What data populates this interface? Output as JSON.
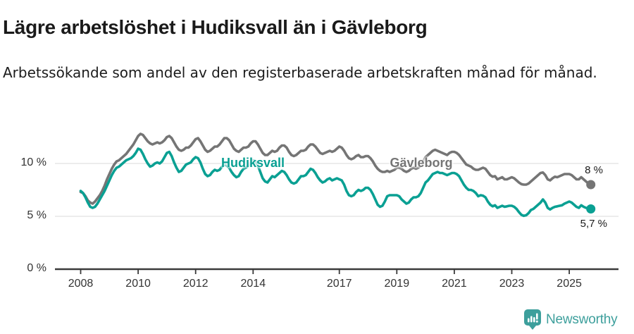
{
  "header": {
    "title": "Lägre arbetslöshet i Hudiksvall än i Gävleborg",
    "subtitle": "Arbetssökande som andel av den registerbaserade arbetskraften månad för månad."
  },
  "chart_data": {
    "type": "line",
    "title": "Lägre arbetslöshet i Hudiksvall än i Gävleborg",
    "frequency": "monthly",
    "x_start_year": 2008,
    "x_end": "2025-10",
    "ylim": [
      0,
      13.5
    ],
    "xlim": [
      2008,
      2025.9
    ],
    "grid": "horizontal",
    "y_ticks": [
      {
        "value": 0,
        "label": "0 %"
      },
      {
        "value": 5,
        "label": "5 %"
      },
      {
        "value": 10,
        "label": "10 %"
      }
    ],
    "x_ticks": [
      {
        "year": 2008,
        "label": "2008"
      },
      {
        "year": 2010,
        "label": "2010"
      },
      {
        "year": 2012,
        "label": "2012"
      },
      {
        "year": 2014,
        "label": "2014"
      },
      {
        "year": 2017,
        "label": "2017"
      },
      {
        "year": 2019,
        "label": "2019"
      },
      {
        "year": 2021,
        "label": "2021"
      },
      {
        "year": 2023,
        "label": "2023"
      },
      {
        "year": 2025,
        "label": "2025"
      }
    ],
    "series": [
      {
        "name": "Hudiksvall",
        "color": "#0aa093",
        "end_label": "5,7 %",
        "end_value": 5.7,
        "values": [
          7.4,
          7.2,
          6.8,
          6.3,
          5.9,
          5.8,
          5.9,
          6.2,
          6.6,
          7.0,
          7.4,
          7.9,
          8.4,
          8.9,
          9.3,
          9.6,
          9.7,
          9.9,
          10.1,
          10.3,
          10.4,
          10.5,
          10.7,
          11.0,
          11.4,
          11.3,
          10.9,
          10.4,
          10.0,
          9.7,
          9.8,
          10.0,
          10.1,
          10.0,
          10.2,
          10.6,
          11.0,
          11.1,
          10.7,
          10.1,
          9.6,
          9.2,
          9.3,
          9.6,
          9.9,
          10.0,
          10.1,
          10.4,
          10.6,
          10.5,
          10.1,
          9.5,
          9.0,
          8.8,
          8.9,
          9.2,
          9.4,
          9.3,
          9.4,
          9.7,
          9.9,
          9.8,
          9.6,
          9.2,
          8.9,
          8.7,
          8.8,
          9.2,
          9.5,
          9.6,
          9.8,
          10.1,
          10.3,
          10.2,
          9.8,
          9.2,
          8.6,
          8.3,
          8.2,
          8.5,
          8.8,
          8.7,
          8.9,
          9.1,
          9.3,
          9.2,
          8.9,
          8.5,
          8.2,
          8.1,
          8.2,
          8.5,
          8.8,
          8.8,
          8.9,
          9.2,
          9.5,
          9.4,
          9.1,
          8.7,
          8.4,
          8.2,
          8.3,
          8.5,
          8.6,
          8.4,
          8.5,
          8.6,
          8.5,
          8.4,
          8.0,
          7.4,
          7.0,
          6.9,
          7.0,
          7.3,
          7.5,
          7.4,
          7.5,
          7.7,
          7.7,
          7.5,
          7.1,
          6.6,
          6.1,
          5.9,
          6.0,
          6.4,
          6.9,
          7.0,
          7.0,
          7.0,
          7.0,
          6.9,
          6.6,
          6.4,
          6.2,
          6.3,
          6.6,
          6.8,
          6.8,
          6.9,
          7.2,
          7.7,
          8.2,
          8.4,
          8.7,
          9.0,
          9.1,
          9.2,
          9.1,
          9.1,
          9.0,
          8.9,
          9.0,
          9.1,
          9.1,
          9.0,
          8.8,
          8.4,
          8.0,
          7.7,
          7.5,
          7.5,
          7.4,
          7.2,
          6.9,
          7.0,
          6.95,
          6.8,
          6.4,
          6.1,
          5.95,
          6.05,
          5.8,
          5.9,
          6.0,
          5.9,
          5.95,
          6.0,
          6.0,
          5.9,
          5.7,
          5.4,
          5.15,
          5.05,
          5.1,
          5.3,
          5.6,
          5.7,
          5.9,
          6.1,
          6.3,
          6.6,
          6.3,
          5.8,
          5.65,
          5.8,
          5.9,
          5.95,
          6.0,
          6.05,
          6.2,
          6.3,
          6.4,
          6.3,
          6.1,
          5.9,
          5.8,
          6.05,
          5.9,
          5.8,
          5.75,
          5.7
        ]
      },
      {
        "name": "Gävleborg",
        "color": "#757575",
        "end_label": "8 %",
        "end_value": 8.0,
        "values": [
          7.3,
          7.2,
          6.9,
          6.5,
          6.3,
          6.2,
          6.4,
          6.7,
          7.0,
          7.4,
          7.9,
          8.5,
          9.0,
          9.5,
          9.9,
          10.2,
          10.3,
          10.5,
          10.7,
          10.9,
          11.2,
          11.5,
          11.8,
          12.2,
          12.6,
          12.8,
          12.7,
          12.4,
          12.1,
          11.9,
          11.8,
          11.9,
          12.0,
          11.9,
          12.0,
          12.2,
          12.5,
          12.6,
          12.4,
          12.0,
          11.6,
          11.3,
          11.2,
          11.3,
          11.5,
          11.5,
          11.7,
          12.0,
          12.3,
          12.4,
          12.1,
          11.7,
          11.3,
          11.1,
          11.2,
          11.4,
          11.6,
          11.6,
          11.8,
          12.1,
          12.4,
          12.4,
          12.2,
          11.8,
          11.4,
          11.2,
          11.1,
          11.3,
          11.5,
          11.5,
          11.6,
          11.9,
          12.1,
          12.1,
          11.8,
          11.4,
          11.0,
          10.8,
          10.8,
          11.0,
          11.2,
          11.1,
          11.2,
          11.5,
          11.7,
          11.7,
          11.5,
          11.1,
          10.8,
          10.7,
          10.8,
          11.0,
          11.2,
          11.2,
          11.3,
          11.6,
          11.8,
          11.8,
          11.6,
          11.3,
          11.0,
          10.9,
          11.0,
          11.1,
          11.2,
          11.1,
          11.2,
          11.4,
          11.6,
          11.5,
          11.2,
          10.8,
          10.5,
          10.4,
          10.5,
          10.7,
          10.8,
          10.6,
          10.6,
          10.7,
          10.7,
          10.5,
          10.2,
          9.8,
          9.5,
          9.3,
          9.2,
          9.2,
          9.3,
          9.2,
          9.3,
          9.4,
          9.6,
          9.6,
          9.5,
          9.3,
          9.2,
          9.3,
          9.5,
          9.6,
          9.5,
          9.6,
          9.8,
          10.2,
          10.6,
          10.8,
          11.0,
          11.2,
          11.3,
          11.2,
          11.1,
          11.0,
          10.9,
          10.8,
          11.0,
          11.1,
          11.1,
          11.0,
          10.8,
          10.5,
          10.2,
          9.9,
          9.8,
          9.7,
          9.5,
          9.4,
          9.4,
          9.5,
          9.6,
          9.5,
          9.2,
          8.9,
          8.75,
          8.8,
          8.5,
          8.6,
          8.7,
          8.5,
          8.5,
          8.6,
          8.7,
          8.6,
          8.4,
          8.2,
          8.05,
          8.0,
          8.0,
          8.1,
          8.3,
          8.5,
          8.7,
          8.9,
          9.1,
          9.15,
          8.9,
          8.5,
          8.4,
          8.6,
          8.75,
          8.7,
          8.8,
          8.9,
          9.0,
          9.0,
          9.0,
          8.9,
          8.7,
          8.5,
          8.5,
          8.7,
          8.5,
          8.3,
          8.1,
          8.0
        ]
      }
    ],
    "colors": {
      "axis": "#3a3a3a",
      "gridline": "#e0e0e0",
      "tick_text": "#333333"
    }
  },
  "footer": {
    "brand": "Newsworthy",
    "logo_color": "#3d9f9c"
  }
}
